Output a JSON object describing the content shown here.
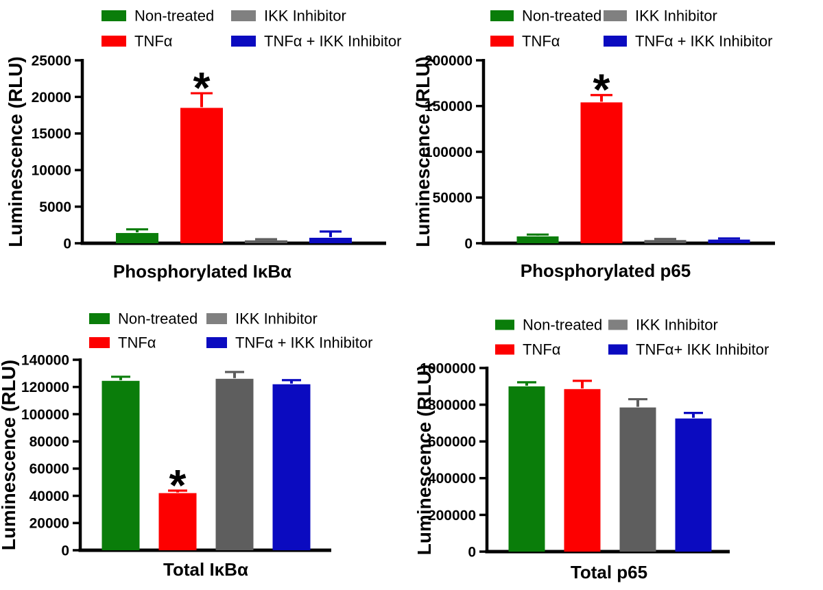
{
  "figure": {
    "description": "Four-panel bar figure of NF-kB pathway luminescence assays",
    "panels": [
      "Phosphorylated IκBα",
      "Phosphorylated p65",
      "Total IκBα",
      "Total p65"
    ]
  },
  "colors": {
    "green": "#0a7d0a",
    "red": "#fd0000",
    "gray_bar": "#5e5e5e",
    "gray_legend": "#808080",
    "blue": "#0b0bc0",
    "axis": "#000000",
    "text": "#000000",
    "background": "#ffffff"
  },
  "chart_data": [
    {
      "type": "bar",
      "title": "Phosphorylated IκBα",
      "ylabel": "Luminescence (RLU)",
      "ylim": [
        0,
        25000
      ],
      "yticks": [
        0,
        5000,
        10000,
        15000,
        20000,
        25000
      ],
      "grid": false,
      "legend_position": "top",
      "categories": [
        "Non-treated",
        "TNFα",
        "IKK Inhibitor",
        "TNFα + IKK Inhibitor"
      ],
      "legend": [
        {
          "label": "Non-treated",
          "color": "green"
        },
        {
          "label": "TNFα",
          "color": "red"
        },
        {
          "label": "IKK Inhibitor",
          "color": "gray"
        },
        {
          "label": "TNFα + IKK Inhibitor",
          "color": "blue"
        }
      ],
      "series_colors": [
        "green",
        "red",
        "gray",
        "blue"
      ],
      "values": [
        1400,
        18500,
        400,
        750
      ],
      "errors": [
        500,
        2000,
        150,
        850
      ],
      "significance": [
        "",
        "*",
        "",
        ""
      ]
    },
    {
      "type": "bar",
      "title": "Phosphorylated p65",
      "ylabel": "Luminescence (RLU)",
      "ylim": [
        0,
        200000
      ],
      "yticks": [
        0,
        50000,
        100000,
        150000,
        200000
      ],
      "grid": false,
      "legend_position": "top",
      "categories": [
        "Non-treated",
        "TNFα",
        "IKK Inhibitor",
        "TNFα + IKK Inhibitor"
      ],
      "legend": [
        {
          "label": "Non-treated",
          "color": "green"
        },
        {
          "label": "TNFα",
          "color": "red"
        },
        {
          "label": "IKK Inhibitor",
          "color": "gray"
        },
        {
          "label": "TNFα + IKK Inhibitor",
          "color": "blue"
        }
      ],
      "series_colors": [
        "green",
        "red",
        "gray",
        "blue"
      ],
      "values": [
        7500,
        154000,
        3500,
        4000
      ],
      "errors": [
        2000,
        8000,
        1200,
        1300
      ],
      "significance": [
        "",
        "*",
        "",
        ""
      ]
    },
    {
      "type": "bar",
      "title": "Total IκBα",
      "ylabel": "Luminescence (RLU)",
      "ylim": [
        0,
        140000
      ],
      "yticks": [
        0,
        20000,
        40000,
        60000,
        80000,
        100000,
        120000,
        140000
      ],
      "grid": false,
      "legend_position": "top",
      "categories": [
        "Non-treated",
        "TNFα",
        "IKK Inhibitor",
        "TNFα + IKK Inhibitor"
      ],
      "legend": [
        {
          "label": "Non-treated",
          "color": "green"
        },
        {
          "label": "TNFα",
          "color": "red"
        },
        {
          "label": "IKK Inhibitor",
          "color": "gray"
        },
        {
          "label": "TNFα + IKK Inhibitor",
          "color": "blue"
        }
      ],
      "series_colors": [
        "green",
        "red",
        "gray",
        "blue"
      ],
      "values": [
        124500,
        42000,
        126000,
        122000
      ],
      "errors": [
        3000,
        1800,
        5000,
        3000
      ],
      "significance": [
        "",
        "*",
        "",
        ""
      ]
    },
    {
      "type": "bar",
      "title": "Total p65",
      "ylabel": "Luminescence (RLU)",
      "ylim": [
        0,
        1000000
      ],
      "yticks": [
        0,
        200000,
        400000,
        600000,
        800000,
        1000000
      ],
      "grid": false,
      "legend_position": "top",
      "categories": [
        "Non-treated",
        "TNFα",
        "IKK Inhibitor",
        "TNFα+ IKK Inhibitor"
      ],
      "legend": [
        {
          "label": "Non-treated",
          "color": "green"
        },
        {
          "label": "TNFα",
          "color": "red"
        },
        {
          "label": "IKK Inhibitor",
          "color": "gray"
        },
        {
          "label": "TNFα+ IKK Inhibitor",
          "color": "blue"
        }
      ],
      "series_colors": [
        "green",
        "red",
        "gray",
        "blue"
      ],
      "values": [
        900000,
        885000,
        785000,
        725000
      ],
      "errors": [
        22000,
        45000,
        45000,
        30000
      ],
      "significance": [
        "",
        "",
        "",
        ""
      ]
    }
  ]
}
